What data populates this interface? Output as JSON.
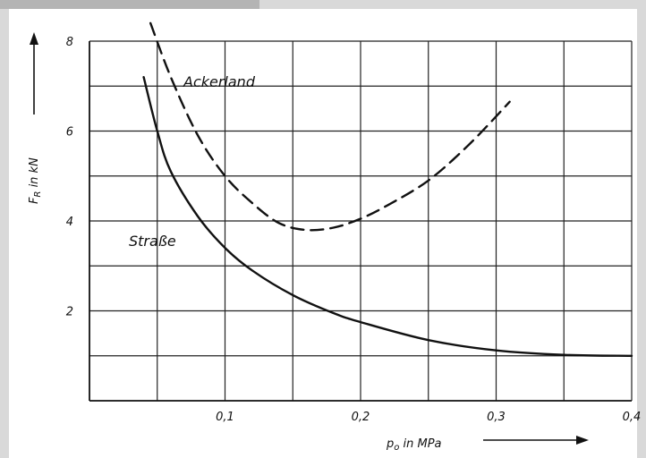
{
  "colors": {
    "background": "#ffffff",
    "ink": "#111111",
    "window_frame": "#d9d9d9"
  },
  "chart_data": {
    "type": "line",
    "title": "",
    "xlabel": "p",
    "xlabel_sub": "o",
    "xlabel_rest": " in MPa",
    "ylabel": "F",
    "ylabel_sub": "R",
    "ylabel_rest": " in kN",
    "xlim": [
      0,
      0.4
    ],
    "ylim": [
      0,
      8
    ],
    "x_ticks": [
      0.1,
      0.2,
      0.3,
      0.4
    ],
    "x_tick_labels": [
      "0,1",
      "0,2",
      "0,3",
      "0,4"
    ],
    "y_ticks": [
      2,
      4,
      6,
      8
    ],
    "y_tick_labels": [
      "2",
      "4",
      "6",
      "8"
    ],
    "grid": true,
    "series": [
      {
        "name": "Straße",
        "style": "solid",
        "points": [
          [
            0.04,
            7.2
          ],
          [
            0.05,
            6.0
          ],
          [
            0.06,
            5.1
          ],
          [
            0.08,
            4.1
          ],
          [
            0.1,
            3.4
          ],
          [
            0.12,
            2.9
          ],
          [
            0.15,
            2.35
          ],
          [
            0.18,
            1.95
          ],
          [
            0.2,
            1.75
          ],
          [
            0.25,
            1.35
          ],
          [
            0.3,
            1.12
          ],
          [
            0.35,
            1.02
          ],
          [
            0.4,
            1.0
          ]
        ]
      },
      {
        "name": "Ackerland",
        "style": "dashed",
        "points": [
          [
            0.045,
            8.4
          ],
          [
            0.06,
            7.2
          ],
          [
            0.08,
            5.9
          ],
          [
            0.1,
            5.0
          ],
          [
            0.12,
            4.4
          ],
          [
            0.14,
            3.95
          ],
          [
            0.16,
            3.8
          ],
          [
            0.18,
            3.85
          ],
          [
            0.2,
            4.05
          ],
          [
            0.22,
            4.35
          ],
          [
            0.25,
            4.9
          ],
          [
            0.28,
            5.7
          ],
          [
            0.31,
            6.65
          ]
        ]
      }
    ]
  }
}
